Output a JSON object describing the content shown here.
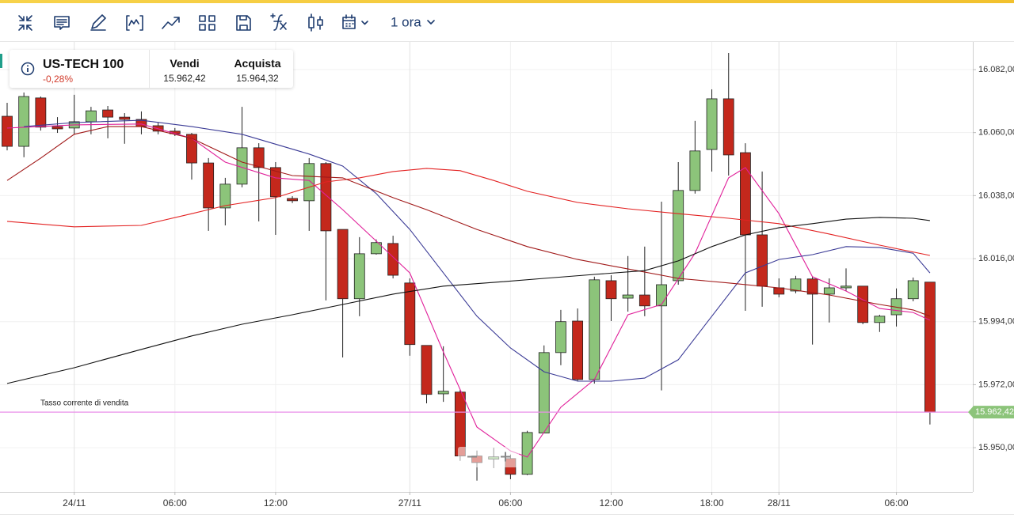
{
  "toolbar": {
    "timeframe": "1 ora"
  },
  "instrument": {
    "name": "US-TECH 100",
    "change": "-0,28%",
    "sell_label": "Vendi",
    "sell_price": "15.962,42",
    "buy_label": "Acquista",
    "buy_price": "15.964,32"
  },
  "chart_data": {
    "type": "candlestick",
    "categories": [
      null,
      null,
      null,
      null,
      "24/11",
      null,
      null,
      null,
      null,
      null,
      "06:00",
      null,
      null,
      null,
      null,
      null,
      "12:00",
      null,
      null,
      null,
      null,
      null,
      null,
      null,
      "27/11",
      null,
      null,
      null,
      null,
      null,
      "06:00",
      null,
      null,
      null,
      null,
      null,
      "12:00",
      null,
      null,
      null,
      null,
      null,
      "18:00",
      null,
      null,
      null,
      "28/11",
      null,
      null,
      null,
      null,
      null,
      null,
      "06:00",
      null,
      null
    ],
    "open": [
      16065.7,
      16055.2,
      16072.1,
      16062.1,
      16061.6,
      16063.8,
      16067.9,
      16065.4,
      16064.6,
      16062.4,
      16060.5,
      16059.4,
      16049.4,
      16033.7,
      16042.0,
      16054.7,
      16047.8,
      16037.0,
      16036.2,
      16049.2,
      16026.2,
      16002.0,
      16017.7,
      16021.3,
      16007.5,
      15985.7,
      15968.8,
      15969.4,
      15947.1,
      15946.0,
      15946.2,
      15940.7,
      15955.1,
      15983.2,
      15994.2,
      15973.8,
      16008.3,
      16002.2,
      16003.3,
      15999.5,
      16008.3,
      16039.8,
      16054.1,
      16071.8,
      16053.0,
      16024.3,
      16005.8,
      16004.7,
      16008.9,
      16003.6,
      16005.8,
      16006.4,
      15993.7,
      15996.4,
      16002.0,
      16007.8
    ],
    "high": [
      16070.4,
      16074.0,
      16072.6,
      16065.4,
      16073.2,
      16069.0,
      16069.3,
      16066.8,
      16067.4,
      16063.5,
      16061.6,
      16059.9,
      16051.1,
      16044.2,
      16069.0,
      16056.3,
      16049.7,
      16037.8,
      16051.1,
      16049.7,
      16026.2,
      16023.5,
      16022.7,
      16024.0,
      16009.1,
      15985.7,
      15985.4,
      15970.2,
      15949.0,
      15950.0,
      15947.6,
      15955.9,
      15985.7,
      15998.1,
      15998.6,
      16009.7,
      16010.2,
      16016.9,
      16020.2,
      16035.9,
      16049.7,
      16064.1,
      16075.1,
      16087.8,
      16056.3,
      16046.4,
      16009.1,
      16010.0,
      16009.7,
      16009.1,
      16012.6,
      16006.4,
      15996.4,
      16005.6,
      16009.4,
      16007.8
    ],
    "low": [
      16053.8,
      16051.4,
      16060.7,
      16059.9,
      16059.4,
      16059.4,
      16058.0,
      16056.1,
      16059.4,
      16059.4,
      16058.8,
      16043.6,
      16025.7,
      16027.6,
      16040.9,
      16029.0,
      16024.3,
      16035.4,
      16025.7,
      16001.4,
      15981.5,
      15995.9,
      16017.4,
      16009.1,
      15982.1,
      15965.5,
      15966.0,
      15945.4,
      15938.5,
      15943.0,
      15939.0,
      15940.4,
      15955.1,
      15978.8,
      15973.3,
      15972.4,
      15994.2,
      15997.5,
      15995.9,
      15970.0,
      16006.9,
      16038.7,
      16046.4,
      16045.0,
      15997.8,
      15999.2,
      16002.5,
      16003.9,
      15986.0,
      15993.7,
      16004.7,
      15993.1,
      15990.4,
      15992.3,
      16001.1,
      15958.1
    ],
    "close": [
      16055.2,
      16072.6,
      16061.9,
      16061.3,
      16063.8,
      16067.6,
      16065.4,
      16064.6,
      16062.1,
      16060.5,
      16059.6,
      16049.4,
      16033.7,
      16042.0,
      16054.7,
      16047.8,
      16037.6,
      16036.2,
      16049.2,
      16025.7,
      16002.0,
      16017.7,
      16021.6,
      16010.2,
      15986.0,
      15968.6,
      15969.7,
      15947.1,
      15944.8,
      15946.8,
      15940.7,
      15955.3,
      15983.2,
      15994.0,
      15973.8,
      16008.6,
      16002.0,
      16003.3,
      15999.5,
      16006.9,
      16039.8,
      16053.6,
      16071.8,
      16052.2,
      16024.3,
      16006.4,
      16003.6,
      16008.9,
      16003.6,
      16005.8,
      16006.4,
      15993.7,
      15995.9,
      16002.0,
      16008.3,
      15962.4
    ],
    "up_color": "#8cc47a",
    "down_color": "#c4281c",
    "lines": [
      {
        "color": "#e0209a",
        "x": [
          0,
          4,
          8,
          11,
          13,
          16,
          18,
          20,
          22,
          24,
          26,
          28,
          30,
          31,
          33,
          35,
          37,
          39,
          41,
          43,
          44,
          46,
          48,
          50,
          52,
          54,
          55
        ],
        "values": [
          16061.6,
          16062.7,
          16063.0,
          16058.0,
          16049.7,
          16044.2,
          16043.3,
          16033.1,
          16022.1,
          16011.0,
          15983.4,
          15957.2,
          15948.9,
          15946.7,
          15964.1,
          15973.8,
          15996.4,
          16000.0,
          16017.9,
          16044.2,
          16047.8,
          16031.7,
          16009.7,
          16004.7,
          15998.6,
          15997.2,
          15994.5
        ]
      },
      {
        "color": "#3b3b96",
        "x": [
          1,
          4,
          8,
          11,
          14,
          18,
          20,
          22,
          24,
          26,
          28,
          30,
          32,
          34,
          36,
          38,
          40,
          42,
          44,
          46,
          48,
          50,
          52,
          54,
          55
        ],
        "values": [
          16062.1,
          16063.5,
          16064.3,
          16062.1,
          16059.4,
          16052.5,
          16048.3,
          16038.7,
          16026.2,
          16011.0,
          15995.9,
          15984.8,
          15976.5,
          15973.2,
          15973.2,
          15974.3,
          15980.7,
          15995.9,
          16011.0,
          16015.7,
          16017.4,
          16020.2,
          16019.9,
          16017.9,
          16011.0
        ]
      },
      {
        "color": "#e32222",
        "x": [
          0,
          4,
          8,
          11,
          13,
          16,
          19,
          21,
          23,
          25,
          27,
          29,
          31,
          34,
          37,
          40,
          43,
          46,
          49,
          52,
          55
        ],
        "values": [
          16029.0,
          16027.1,
          16027.6,
          16031.7,
          16034.5,
          16037.3,
          16042.8,
          16044.2,
          16046.4,
          16047.5,
          16046.7,
          16043.3,
          16039.5,
          16035.6,
          16033.4,
          16031.7,
          16030.1,
          16028.2,
          16024.6,
          16020.7,
          16017.1
        ]
      },
      {
        "color": "#a01818",
        "x": [
          0,
          2,
          4,
          6,
          8,
          11,
          14,
          17,
          20,
          23,
          25,
          28,
          31,
          34,
          37,
          40,
          43,
          46,
          49,
          52,
          54,
          55
        ],
        "values": [
          16043.3,
          16051.1,
          16059.4,
          16062.1,
          16062.1,
          16058.0,
          16049.7,
          16045.0,
          16044.2,
          16037.3,
          16033.1,
          16026.2,
          16020.2,
          16015.7,
          16012.4,
          16009.1,
          16007.5,
          16005.8,
          16003.3,
          16000.0,
          15998.1,
          15995.9
        ]
      },
      {
        "color": "#111111",
        "x": [
          0,
          4,
          8,
          11,
          14,
          17,
          20,
          23,
          26,
          29,
          32,
          35,
          38,
          40,
          42,
          44,
          46,
          48,
          50,
          52,
          54,
          55
        ],
        "values": [
          15972.4,
          15977.9,
          15984.3,
          15989.0,
          15993.1,
          15996.4,
          16000.0,
          16003.6,
          16006.4,
          16007.7,
          16009.1,
          16010.5,
          16011.8,
          16015.2,
          16020.2,
          16024.3,
          16026.8,
          16028.2,
          16029.8,
          16030.4,
          16030.1,
          16029.3
        ]
      }
    ],
    "price_line": {
      "value": 15962.42,
      "label": "15.962,42",
      "text": "Tasso corrente di vendita",
      "color": "#e88ee8",
      "badge_color": "#8cc47a"
    },
    "ylim": [
      15934.56,
      16091.66
    ],
    "yticks": [
      {
        "value": 16082,
        "label": "16.082,00"
      },
      {
        "value": 16060,
        "label": "16.060,00"
      },
      {
        "value": 16038,
        "label": "16.038,00"
      },
      {
        "value": 16016,
        "label": "16.016,00"
      },
      {
        "value": 15994,
        "label": "15.994,00"
      },
      {
        "value": 15972,
        "label": "15.972,00"
      },
      {
        "value": 15950,
        "label": "15.950,00"
      }
    ],
    "grid": true
  }
}
